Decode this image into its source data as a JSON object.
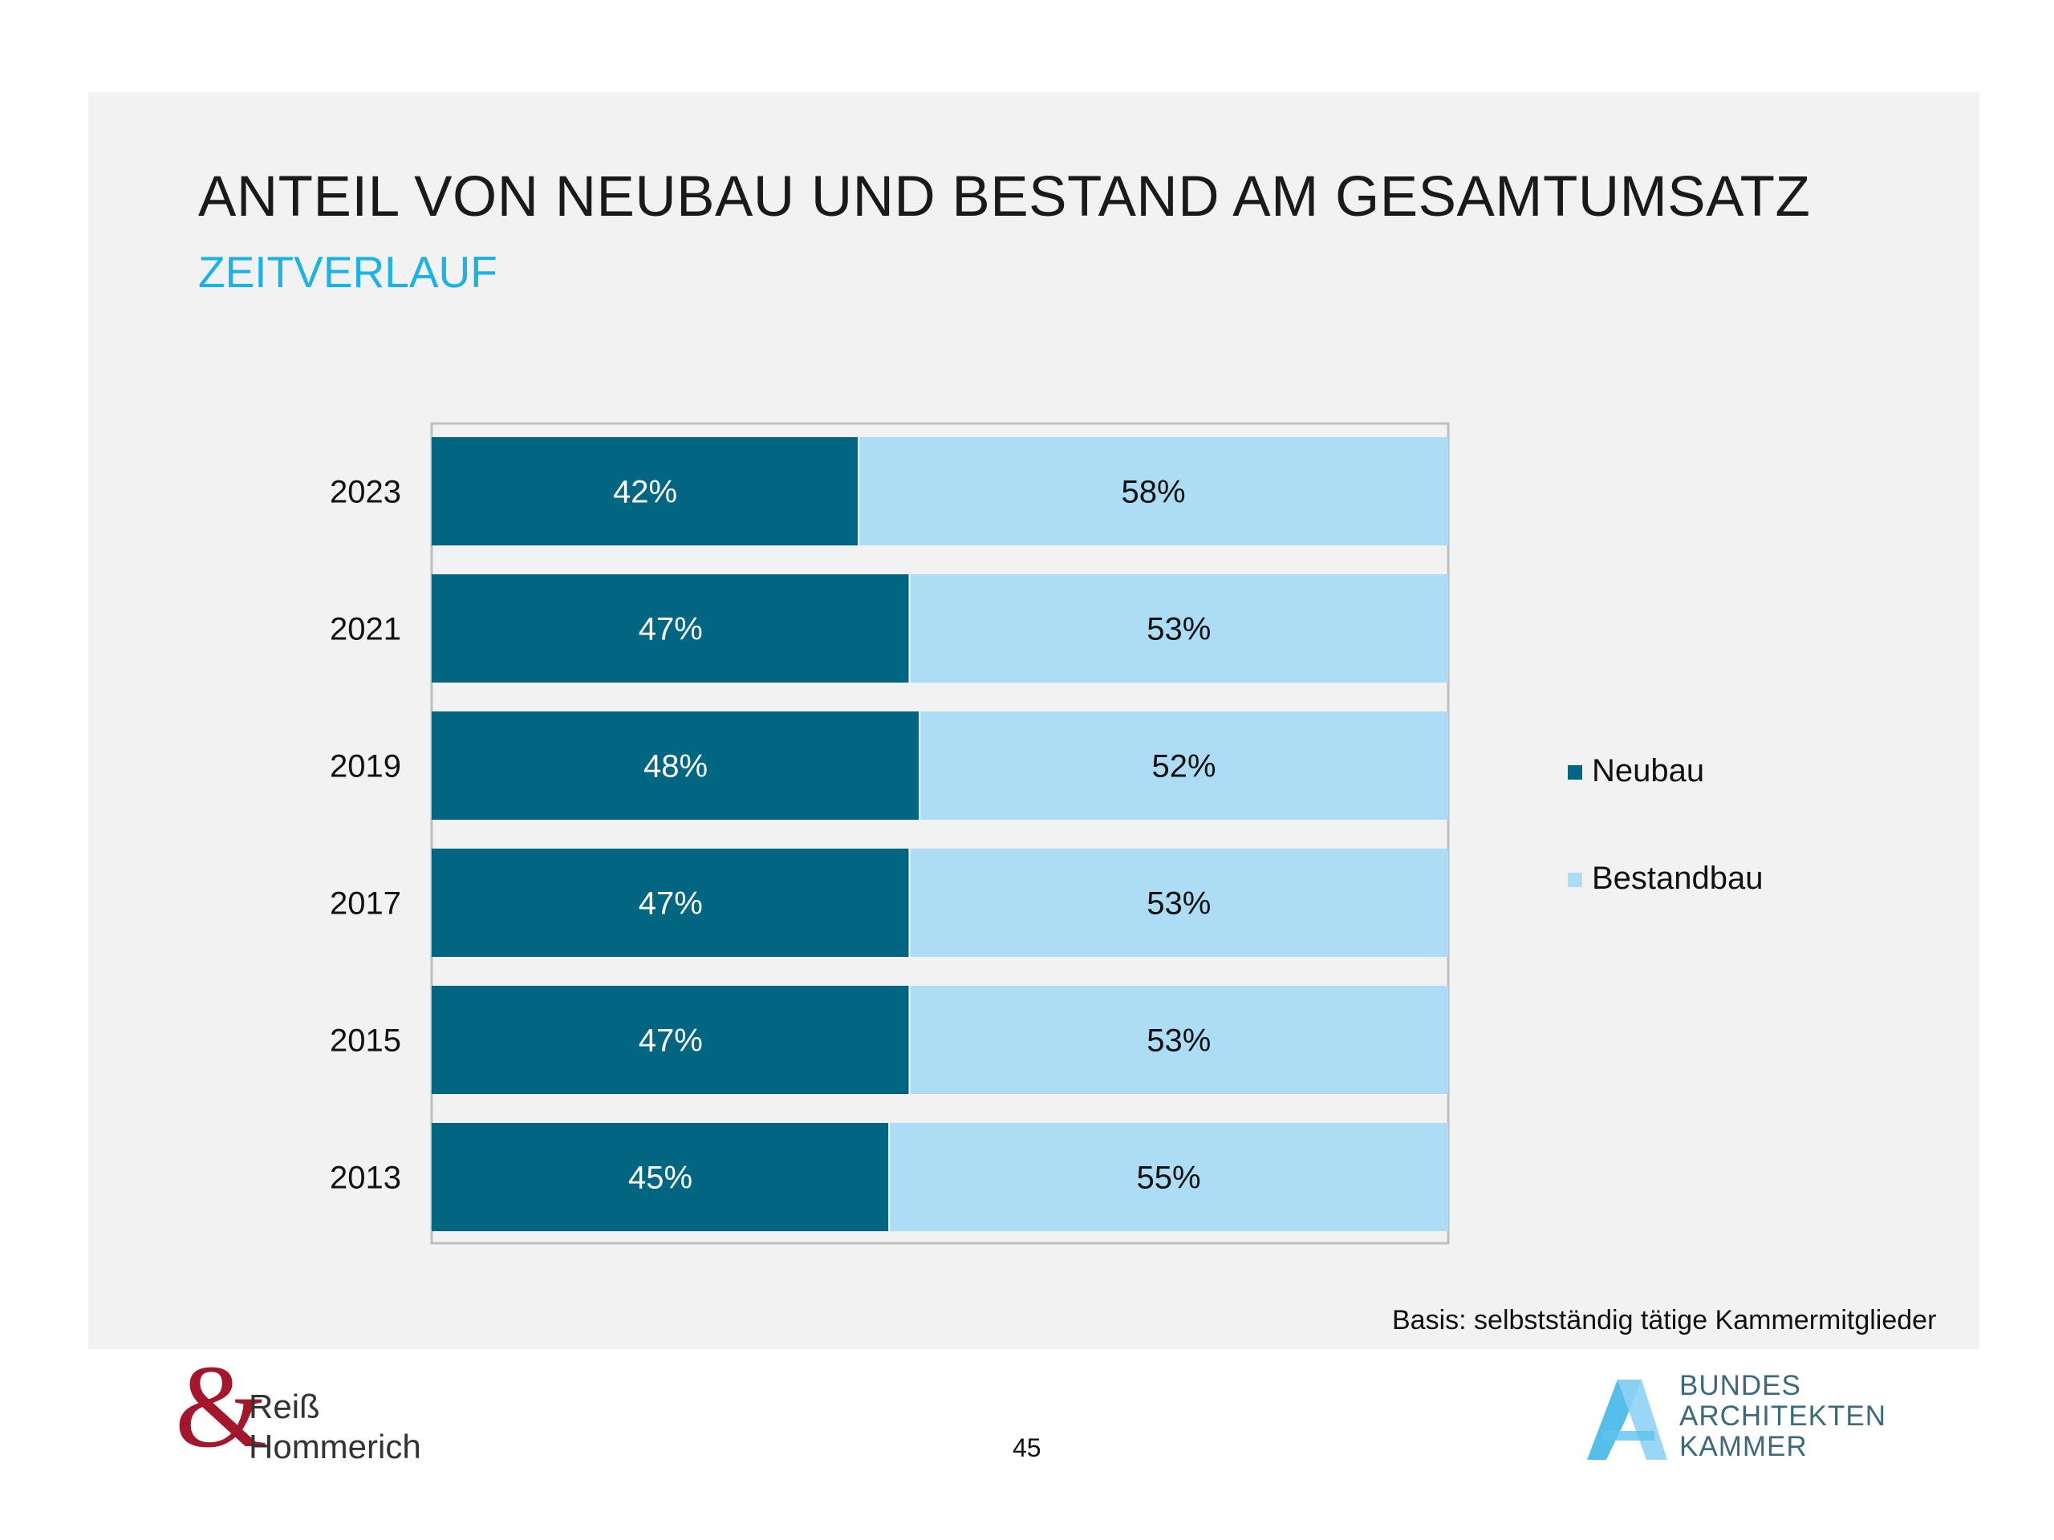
{
  "title": "ANTEIL VON NEUBAU UND BESTAND AM GESAMTUMSATZ",
  "subtitle": "ZEITVERLAUF",
  "footnote": "Basis: selbstständig tätige Kammermitglieder",
  "page_number": "45",
  "logo_left": {
    "symbol": "&",
    "line1": "Reiß",
    "line2": "Hommerich"
  },
  "logo_right": {
    "symbol": "A-logo-icon",
    "line1": "BUNDES",
    "line2": "ARCHITEKTEN",
    "line3": "KAMMER"
  },
  "colors": {
    "neubau": "#006681",
    "bestandbau": "#addcf5",
    "frame": "#bfbfbf"
  },
  "chart_data": {
    "type": "bar",
    "orientation": "horizontal-stacked-100",
    "categories": [
      "2023",
      "2021",
      "2019",
      "2017",
      "2015",
      "2013"
    ],
    "series": [
      {
        "name": "Neubau",
        "values": [
          42,
          47,
          48,
          47,
          47,
          45
        ],
        "labels": [
          "42%",
          "47%",
          "48%",
          "47%",
          "47%",
          "45%"
        ]
      },
      {
        "name": "Bestandbau",
        "values": [
          58,
          53,
          52,
          53,
          53,
          55
        ],
        "labels": [
          "58%",
          "53%",
          "52%",
          "53%",
          "53%",
          "55%"
        ]
      }
    ],
    "xlim": [
      0,
      100
    ],
    "legend_position": "right"
  }
}
